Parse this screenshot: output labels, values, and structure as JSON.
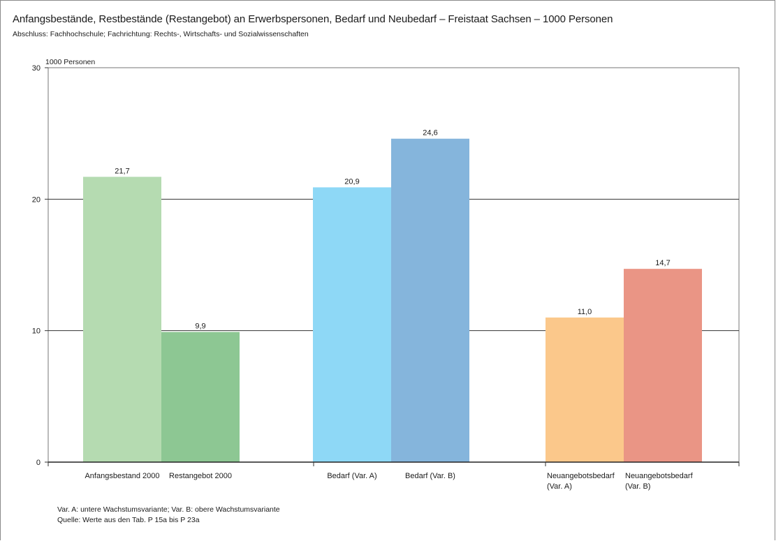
{
  "title": "Anfangsbestände, Restbestände (Restangebot) an Erwerbspersonen, Bedarf und Neubedarf – Freistaat Sachsen – 1000 Personen",
  "subtitle": "Abschluss: Fachhochschule; Fachrichtung: Rechts-, Wirtschafts- und Sozialwissenschaften",
  "footnotes": [
    "Var. A: untere Wachstumsvariante; Var. B: obere Wachstumsvariante",
    "Quelle: Werte aus den Tab. P 15a bis P 23a"
  ],
  "chart_data": {
    "type": "bar",
    "ylabel": "1000 Personen",
    "ylim": [
      0,
      30
    ],
    "yticks": [
      0,
      10,
      20,
      30
    ],
    "grid": true,
    "bars": [
      {
        "category": [
          "Anfangsbestand 2000"
        ],
        "value": 21.7,
        "label": "21,7",
        "group": 0,
        "color": "#b5dbb1"
      },
      {
        "category": [
          "Restangebot 2000"
        ],
        "value": 9.9,
        "label": "9,9",
        "group": 0,
        "color": "#8dc793"
      },
      {
        "category": [
          "Bedarf (Var. A)"
        ],
        "value": 20.9,
        "label": "20,9",
        "group": 1,
        "color": "#8ed8f6"
      },
      {
        "category": [
          "Bedarf (Var. B)"
        ],
        "value": 24.6,
        "label": "24,6",
        "group": 1,
        "color": "#85b5dc"
      },
      {
        "category": [
          "Neuangebotsbedarf",
          "(Var. A)"
        ],
        "value": 11.0,
        "label": "11,0",
        "group": 2,
        "color": "#fbc88b"
      },
      {
        "category": [
          "Neuangebotsbedarf",
          "(Var. B)"
        ],
        "value": 14.7,
        "label": "14,7",
        "group": 2,
        "color": "#ea9585"
      }
    ]
  }
}
